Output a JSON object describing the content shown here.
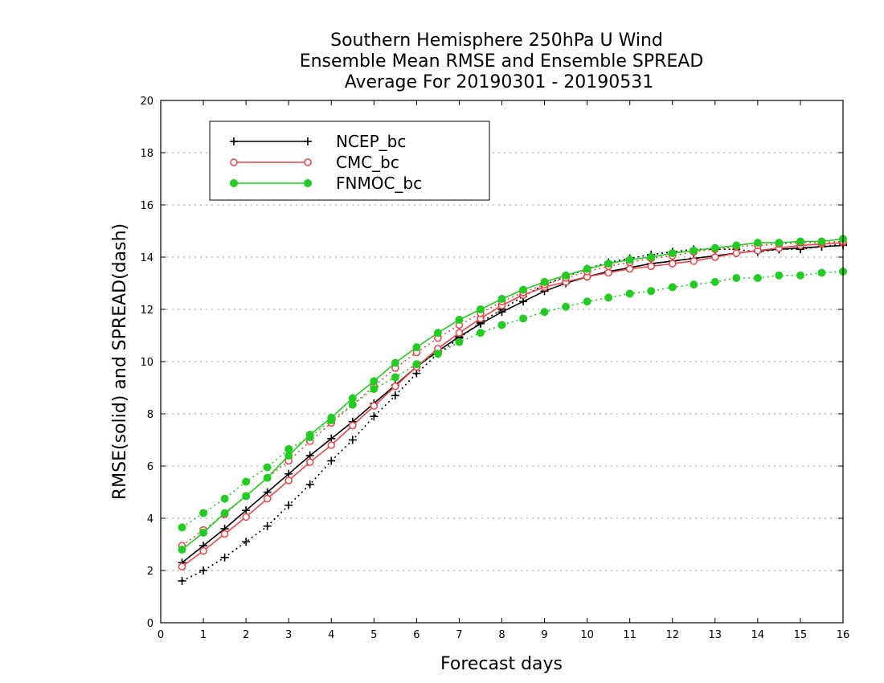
{
  "chart_data": {
    "type": "line",
    "title": [
      "Southern Hemisphere 250hPa U Wind",
      "Ensemble Mean RMSE and Ensemble SPREAD",
      "Average For 20190301 - 20190531"
    ],
    "xlabel": "Forecast days",
    "ylabel": "RMSE(solid) and SPREAD(dash)",
    "xlim": [
      0,
      16
    ],
    "ylim": [
      0,
      20
    ],
    "xticks": [
      "0",
      "1",
      "2",
      "3",
      "4",
      "5",
      "6",
      "7",
      "8",
      "9",
      "10",
      "11",
      "12",
      "13",
      "14",
      "15",
      "16"
    ],
    "yticks": [
      "0",
      "2",
      "4",
      "6",
      "8",
      "10",
      "12",
      "14",
      "16",
      "18",
      "20"
    ],
    "grid": true,
    "legend": {
      "position": "top-left",
      "entries": [
        "NCEP_bc",
        "CMC_bc",
        "FNMOC_bc"
      ]
    },
    "x": [
      0.5,
      1,
      1.5,
      2,
      2.5,
      3,
      3.5,
      4,
      4.5,
      5,
      5.5,
      6,
      6.5,
      7,
      7.5,
      8,
      8.5,
      9,
      9.5,
      10,
      10.5,
      11,
      11.5,
      12,
      12.5,
      13,
      13.5,
      14,
      14.5,
      15,
      15.5,
      16
    ],
    "series": [
      {
        "name": "NCEP_bc",
        "metric": "RMSE",
        "style": "solid",
        "color": "#000000",
        "marker": "plus",
        "values": [
          2.3,
          2.95,
          3.6,
          4.3,
          5.0,
          5.7,
          6.4,
          7.05,
          7.7,
          8.4,
          9.1,
          9.8,
          10.4,
          10.95,
          11.45,
          11.9,
          12.3,
          12.7,
          13.0,
          13.25,
          13.45,
          13.6,
          13.75,
          13.85,
          13.95,
          14.05,
          14.15,
          14.25,
          14.3,
          14.35,
          14.4,
          14.45
        ]
      },
      {
        "name": "NCEP_bc",
        "metric": "SPREAD",
        "style": "dash",
        "color": "#000000",
        "marker": "plus",
        "values": [
          1.6,
          2.0,
          2.5,
          3.1,
          3.7,
          4.5,
          5.3,
          6.2,
          7.0,
          7.9,
          8.7,
          9.55,
          10.3,
          10.9,
          11.5,
          12.0,
          12.5,
          12.95,
          13.25,
          13.55,
          13.8,
          13.95,
          14.1,
          14.2,
          14.3,
          14.3,
          14.3,
          14.2,
          14.3,
          14.3,
          14.4,
          14.5
        ]
      },
      {
        "name": "CMC_bc",
        "metric": "RMSE",
        "style": "solid",
        "color": "#e8474a",
        "marker": "open-circle",
        "values": [
          2.15,
          2.75,
          3.4,
          4.05,
          4.75,
          5.45,
          6.15,
          6.8,
          7.55,
          8.3,
          9.05,
          9.8,
          10.5,
          11.1,
          11.65,
          12.15,
          12.55,
          12.85,
          13.05,
          13.25,
          13.4,
          13.55,
          13.65,
          13.75,
          13.85,
          14.0,
          14.15,
          14.25,
          14.35,
          14.45,
          14.5,
          14.55
        ]
      },
      {
        "name": "CMC_bc",
        "metric": "SPREAD",
        "style": "dash",
        "color": "#e8474a",
        "marker": "open-circle",
        "values": [
          2.95,
          3.55,
          4.15,
          4.85,
          5.55,
          6.2,
          6.95,
          7.65,
          8.35,
          9.05,
          9.75,
          10.35,
          10.9,
          11.4,
          11.85,
          12.3,
          12.65,
          12.95,
          13.2,
          13.45,
          13.65,
          13.8,
          13.95,
          14.05,
          14.2,
          14.3,
          14.4,
          14.45,
          14.5,
          14.55,
          14.55,
          14.6
        ]
      },
      {
        "name": "FNMOC_bc",
        "metric": "RMSE",
        "style": "solid",
        "color": "#22cc22",
        "marker": "filled-circle",
        "values": [
          2.8,
          3.45,
          4.2,
          4.85,
          5.55,
          6.4,
          7.2,
          7.85,
          8.6,
          9.25,
          9.95,
          10.55,
          11.1,
          11.6,
          12.0,
          12.4,
          12.75,
          13.05,
          13.3,
          13.55,
          13.75,
          13.9,
          14.0,
          14.15,
          14.25,
          14.35,
          14.45,
          14.55,
          14.55,
          14.6,
          14.6,
          14.7
        ]
      },
      {
        "name": "FNMOC_bc",
        "metric": "SPREAD",
        "style": "dash",
        "color": "#22cc22",
        "marker": "filled-circle",
        "values": [
          3.65,
          4.2,
          4.75,
          5.4,
          5.95,
          6.65,
          7.1,
          7.75,
          8.35,
          8.95,
          9.4,
          9.9,
          10.3,
          10.75,
          11.1,
          11.4,
          11.65,
          11.9,
          12.1,
          12.3,
          12.45,
          12.6,
          12.7,
          12.85,
          12.95,
          13.05,
          13.2,
          13.2,
          13.3,
          13.3,
          13.4,
          13.45
        ]
      }
    ]
  }
}
